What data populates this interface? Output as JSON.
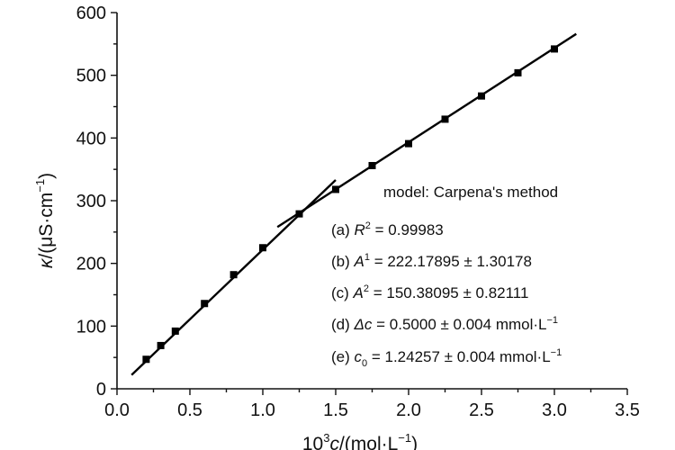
{
  "chart_data": {
    "type": "scatter",
    "xlabel": "10^3c/(mol·L^-1)",
    "ylabel": "κ/(μS·cm^-1)",
    "xlim": [
      0,
      3.5
    ],
    "ylim": [
      0,
      600
    ],
    "x_ticks": [
      "0.0",
      "0.5",
      "1.0",
      "1.5",
      "2.0",
      "2.5",
      "3.0",
      "3.5"
    ],
    "y_ticks": [
      "0",
      "100",
      "200",
      "300",
      "400",
      "500",
      "600"
    ],
    "grid": false,
    "series": [
      {
        "x": [
          0.2,
          0.3,
          0.4,
          0.6,
          0.8,
          1.0,
          1.25,
          1.5,
          1.75,
          2.0,
          2.25,
          2.5,
          2.75,
          3.0
        ],
        "y": [
          47,
          69,
          92,
          136,
          182,
          225,
          279,
          318,
          356,
          391,
          430,
          467,
          504,
          542
        ]
      }
    ],
    "fit_lines": [
      {
        "x": [
          0.1,
          1.5
        ],
        "y": [
          22,
          333
        ]
      },
      {
        "x": [
          1.1,
          3.15
        ],
        "y": [
          258,
          566
        ]
      }
    ],
    "annotations": {
      "title": "model: Carpena's method",
      "a_prefix": "(a) ",
      "a_sym": "R",
      "a_sup": "2",
      "a_val": " = 0.99983",
      "b_prefix": "(b) ",
      "b_sym": "A",
      "b_sup": "1",
      "b_val": " = 222.17895 ± 1.30178",
      "c_prefix": "(c) ",
      "c_sym": "A",
      "c_sup": "2",
      "c_val": " = 150.38095 ± 0.82111",
      "d_prefix": "(d) ",
      "d_sym": "Δc",
      "d_val": " = 0.5000 ± 0.004 mmol·L",
      "e_prefix": "(e) ",
      "e_sym": "c",
      "e_sub": "0",
      "e_val": " = 1.24257 ± 0.004 mmol·L",
      "unit_sup": "−1"
    }
  }
}
